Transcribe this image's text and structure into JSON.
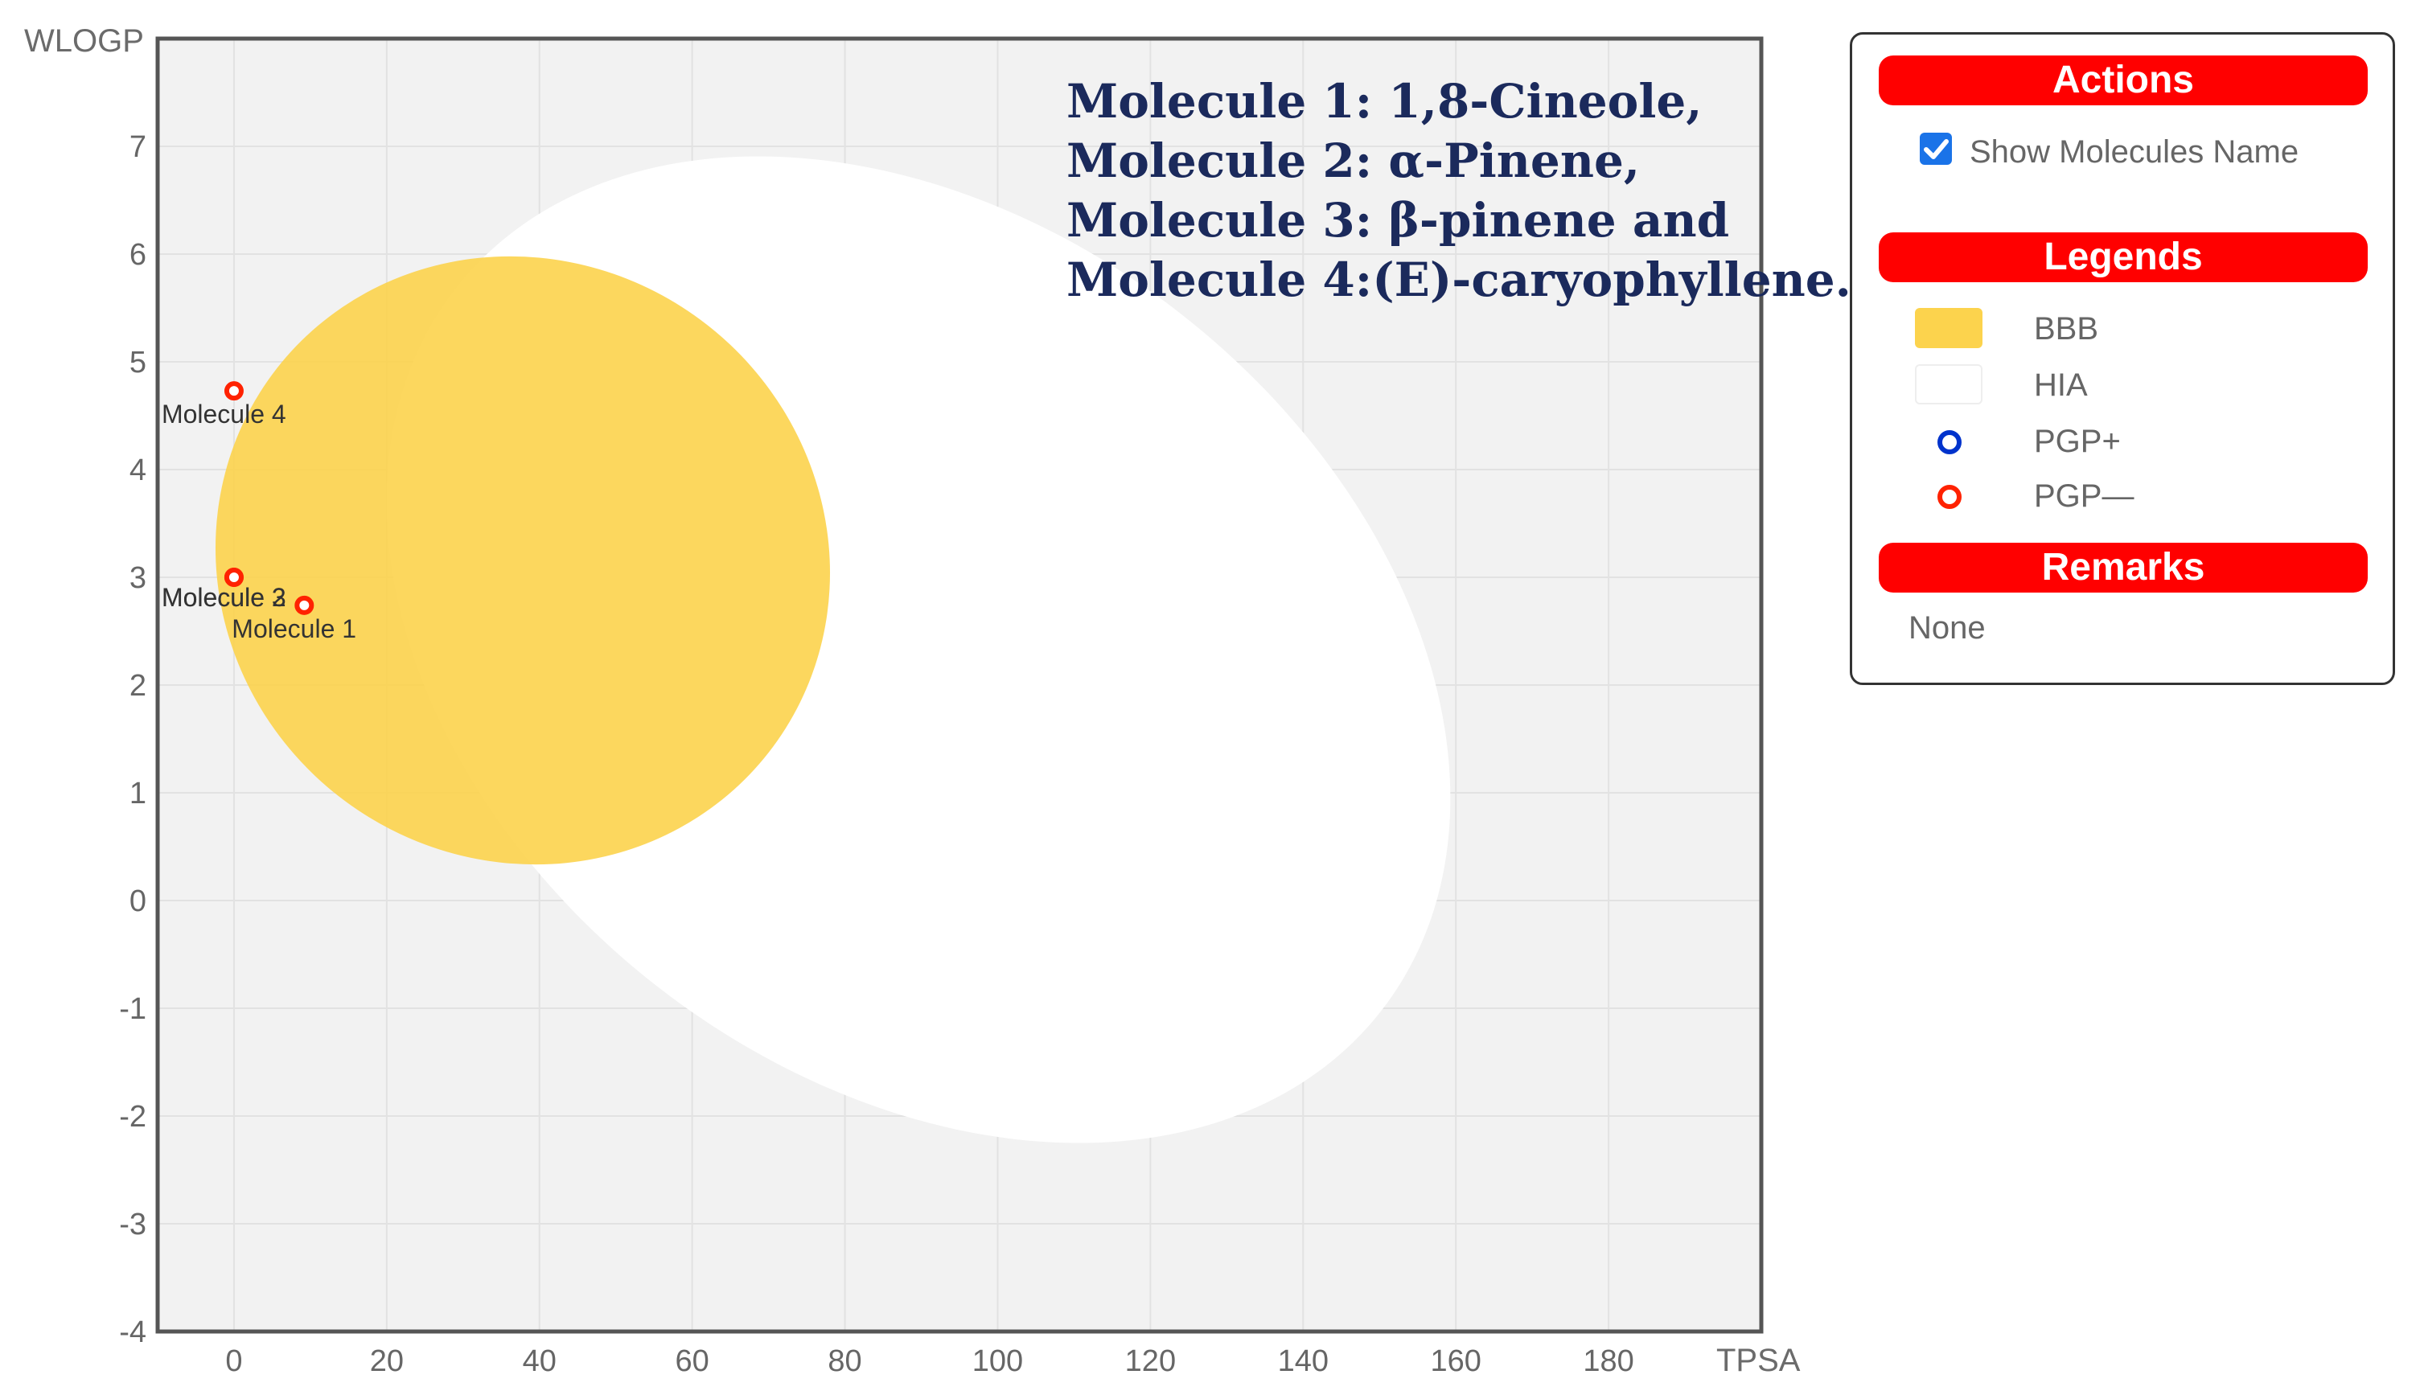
{
  "chart_data": {
    "type": "scatter",
    "xlabel": "TPSA",
    "ylabel": "WLOGP",
    "xlim": [
      -10,
      200
    ],
    "ylim": [
      -4,
      8
    ],
    "x_ticks": [
      0,
      20,
      40,
      60,
      80,
      100,
      120,
      140,
      160,
      180
    ],
    "y_ticks": [
      -4,
      -3,
      -2,
      -1,
      0,
      1,
      2,
      3,
      4,
      5,
      6,
      7
    ],
    "grid": true,
    "regions": [
      {
        "name": "HIA",
        "shape": "ellipse",
        "color": "#ffffff"
      },
      {
        "name": "BBB",
        "shape": "ellipse",
        "color": "#fcd34d"
      }
    ],
    "points": [
      {
        "label": "Molecule 1",
        "x": 9.2,
        "y": 2.74,
        "class": "PGP—"
      },
      {
        "label": "Molecule 2",
        "x": 0.0,
        "y": 3.0,
        "class": "PGP—"
      },
      {
        "label": "Molecule 3",
        "x": 0.0,
        "y": 3.0,
        "class": "PGP—"
      },
      {
        "label": "Molecule 4",
        "x": 0.0,
        "y": 4.73,
        "class": "PGP—"
      }
    ],
    "annotation": [
      "Molecule 1: 1,8-Cineole,",
      "Molecule 2: α-Pinene,",
      "Molecule 3: β-pinene and",
      "Molecule 4:(E)-caryophyllene."
    ]
  },
  "panel": {
    "actions_title": "Actions",
    "show_names_label": "Show Molecules Name",
    "show_names_checked": true,
    "legends_title": "Legends",
    "legend_items": [
      "BBB",
      "HIA",
      "PGP+",
      "PGP—"
    ],
    "remarks_title": "Remarks",
    "remarks_text": "None"
  },
  "colors": {
    "bbb": "#fcd34d",
    "hia": "#ffffff",
    "pgp_plus": "#0033cc",
    "pgp_minus": "#ff2200",
    "header_bar": "#ff0000",
    "plot_background": "#f2f2f2"
  }
}
